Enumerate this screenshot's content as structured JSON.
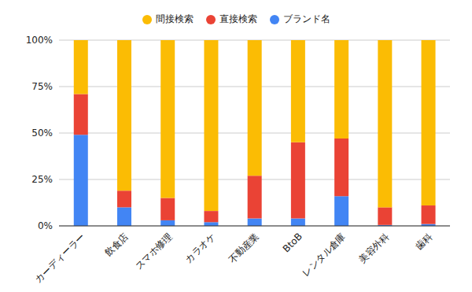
{
  "chart_data": {
    "type": "bar",
    "stacked": true,
    "grid": true,
    "legend": "top",
    "categories": [
      "カーディーラー",
      "飲食店",
      "スマホ修理",
      "カラオケ",
      "不動産業",
      "BtoB",
      "レンタル倉庫",
      "美容外科",
      "歯科"
    ],
    "series": [
      {
        "name": "ブランド名",
        "color": "#4285f4",
        "values": [
          49,
          10,
          3,
          2,
          4,
          4,
          16,
          0.5,
          1
        ]
      },
      {
        "name": "直接検索",
        "color": "#ea4335",
        "values": [
          22,
          9,
          12,
          6,
          23,
          41,
          31,
          9.5,
          10
        ]
      },
      {
        "name": "間接検索",
        "color": "#fbbc04",
        "values": [
          29,
          81,
          85,
          92,
          73,
          55,
          53,
          90,
          89
        ]
      }
    ],
    "ylim": [
      0,
      100
    ],
    "yticks": [
      {
        "value": 0,
        "label": "0%"
      },
      {
        "value": 25,
        "label": "25%"
      },
      {
        "value": 50,
        "label": "50%"
      },
      {
        "value": 75,
        "label": "75%"
      },
      {
        "value": 100,
        "label": "100%"
      }
    ]
  }
}
